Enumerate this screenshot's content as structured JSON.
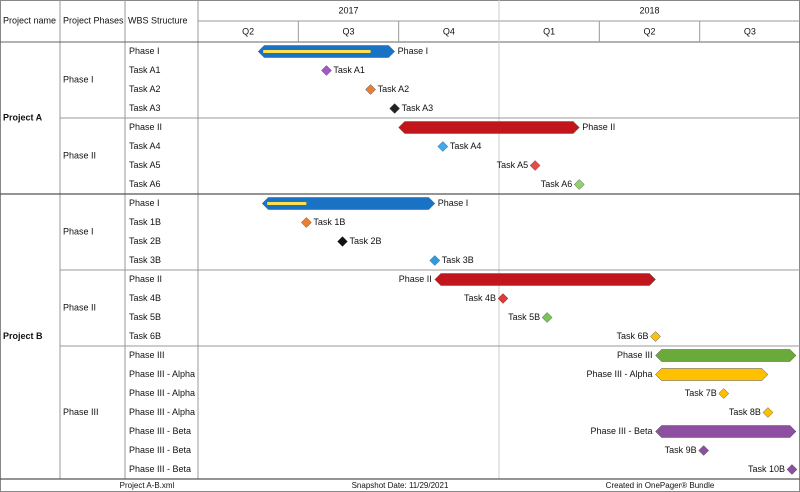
{
  "chart_data": {
    "type": "gantt",
    "headers": [
      "Project name",
      "Project Phases",
      "WBS Structure"
    ],
    "xlim": [
      2017.25,
      2018.75
    ],
    "years": [
      {
        "value": 2017,
        "label": "2017"
      },
      {
        "value": 2018,
        "label": "2018"
      }
    ],
    "quarters": [
      {
        "value": 2017.25,
        "label": "Q2"
      },
      {
        "value": 2017.5,
        "label": "Q3"
      },
      {
        "value": 2017.75,
        "label": "Q4"
      },
      {
        "value": 2018,
        "label": "Q1"
      },
      {
        "value": 2018.25,
        "label": "Q2"
      },
      {
        "value": 2018.5,
        "label": "Q3"
      }
    ],
    "projects": [
      {
        "name": "Project A",
        "phases": [
          {
            "name": "Phase I",
            "rows": [
              {
                "wbs": "Phase I",
                "start": 2017.4,
                "end": 2017.74,
                "progress": 2017.68,
                "color": "#1a72c4",
                "label_position": "right"
              },
              {
                "wbs": "Task A1",
                "label": "Task A1",
                "date": 2017.57,
                "color": "#a259c4",
                "label_position": "right"
              },
              {
                "wbs": "Task A2",
                "label": "Task A2",
                "date": 2017.68,
                "color": "#ed7d31",
                "label_position": "right"
              },
              {
                "wbs": "Task A3",
                "label": "Task A3",
                "date": 2017.74,
                "color": "#222222",
                "label_position": "right"
              }
            ]
          },
          {
            "name": "Phase II",
            "rows": [
              {
                "wbs": "Phase II",
                "start": 2017.75,
                "end": 2018.2,
                "color": "#c0161c",
                "label_position": "right"
              },
              {
                "wbs": "Task A4",
                "label": "Task A4",
                "date": 2017.86,
                "color": "#3fa9f5",
                "label_position": "right"
              },
              {
                "wbs": "Task A5",
                "label": "Task A5",
                "date": 2018.09,
                "color": "#e84a4a",
                "label_position": "left"
              },
              {
                "wbs": "Task A6",
                "label": "Task A6",
                "date": 2018.2,
                "color": "#8fd36b",
                "label_position": "left"
              }
            ]
          }
        ]
      },
      {
        "name": "Project B",
        "phases": [
          {
            "name": "Phase I",
            "rows": [
              {
                "wbs": "Phase I",
                "start": 2017.41,
                "end": 2017.84,
                "progress": 2017.52,
                "color": "#1a72c4",
                "label_position": "right"
              },
              {
                "wbs": "Task 1B",
                "label": "Task 1B",
                "date": 2017.52,
                "color": "#ed7d31",
                "label_position": "right"
              },
              {
                "wbs": "Task 2B",
                "label": "Task 2B",
                "date": 2017.61,
                "color": "#111111",
                "label_position": "right"
              },
              {
                "wbs": "Task 3B",
                "label": "Task 3B",
                "date": 2017.84,
                "color": "#2e9be0",
                "label_position": "right"
              }
            ]
          },
          {
            "name": "Phase II",
            "rows": [
              {
                "wbs": "Phase II",
                "start": 2017.84,
                "end": 2018.39,
                "color": "#c0161c",
                "label_position": "left"
              },
              {
                "wbs": "Task 4B",
                "label": "Task 4B",
                "date": 2018.01,
                "color": "#e03a3a",
                "label_position": "left"
              },
              {
                "wbs": "Task 5B",
                "label": "Task 5B",
                "date": 2018.12,
                "color": "#7cc35a",
                "label_position": "left"
              },
              {
                "wbs": "Task 6B",
                "label": "Task 6B",
                "date": 2018.39,
                "color": "#ffc000",
                "label_position": "left"
              }
            ]
          },
          {
            "name": "Phase III",
            "rows": [
              {
                "wbs": "Phase III",
                "start": 2018.39,
                "end": 2018.74,
                "color": "#6aaa3a",
                "label_position": "left"
              },
              {
                "wbs": "Phase III - Alpha",
                "start": 2018.39,
                "end": 2018.67,
                "color": "#ffc000",
                "label_position": "left"
              },
              {
                "wbs": "Phase III - Alpha",
                "label": "Task 7B",
                "date": 2018.56,
                "color": "#ffc000",
                "label_position": "left"
              },
              {
                "wbs": "Phase III - Alpha",
                "label": "Task 8B",
                "date": 2018.67,
                "color": "#ffc000",
                "label_position": "left"
              },
              {
                "wbs": "Phase III - Beta",
                "start": 2018.39,
                "end": 2018.74,
                "color": "#8e4fa0",
                "label_position": "left"
              },
              {
                "wbs": "Phase III - Beta",
                "label": "Task 9B",
                "date": 2018.51,
                "color": "#8e4fa0",
                "label_position": "left"
              },
              {
                "wbs": "Phase III - Beta",
                "label": "Task 10B",
                "date": 2018.73,
                "color": "#8e4fa0",
                "label_position": "left"
              }
            ]
          }
        ]
      }
    ],
    "footer": [
      "Project A-B.xml",
      "Snapshot Date: 11/29/2021",
      "Created in OnePager® Bundle"
    ]
  }
}
